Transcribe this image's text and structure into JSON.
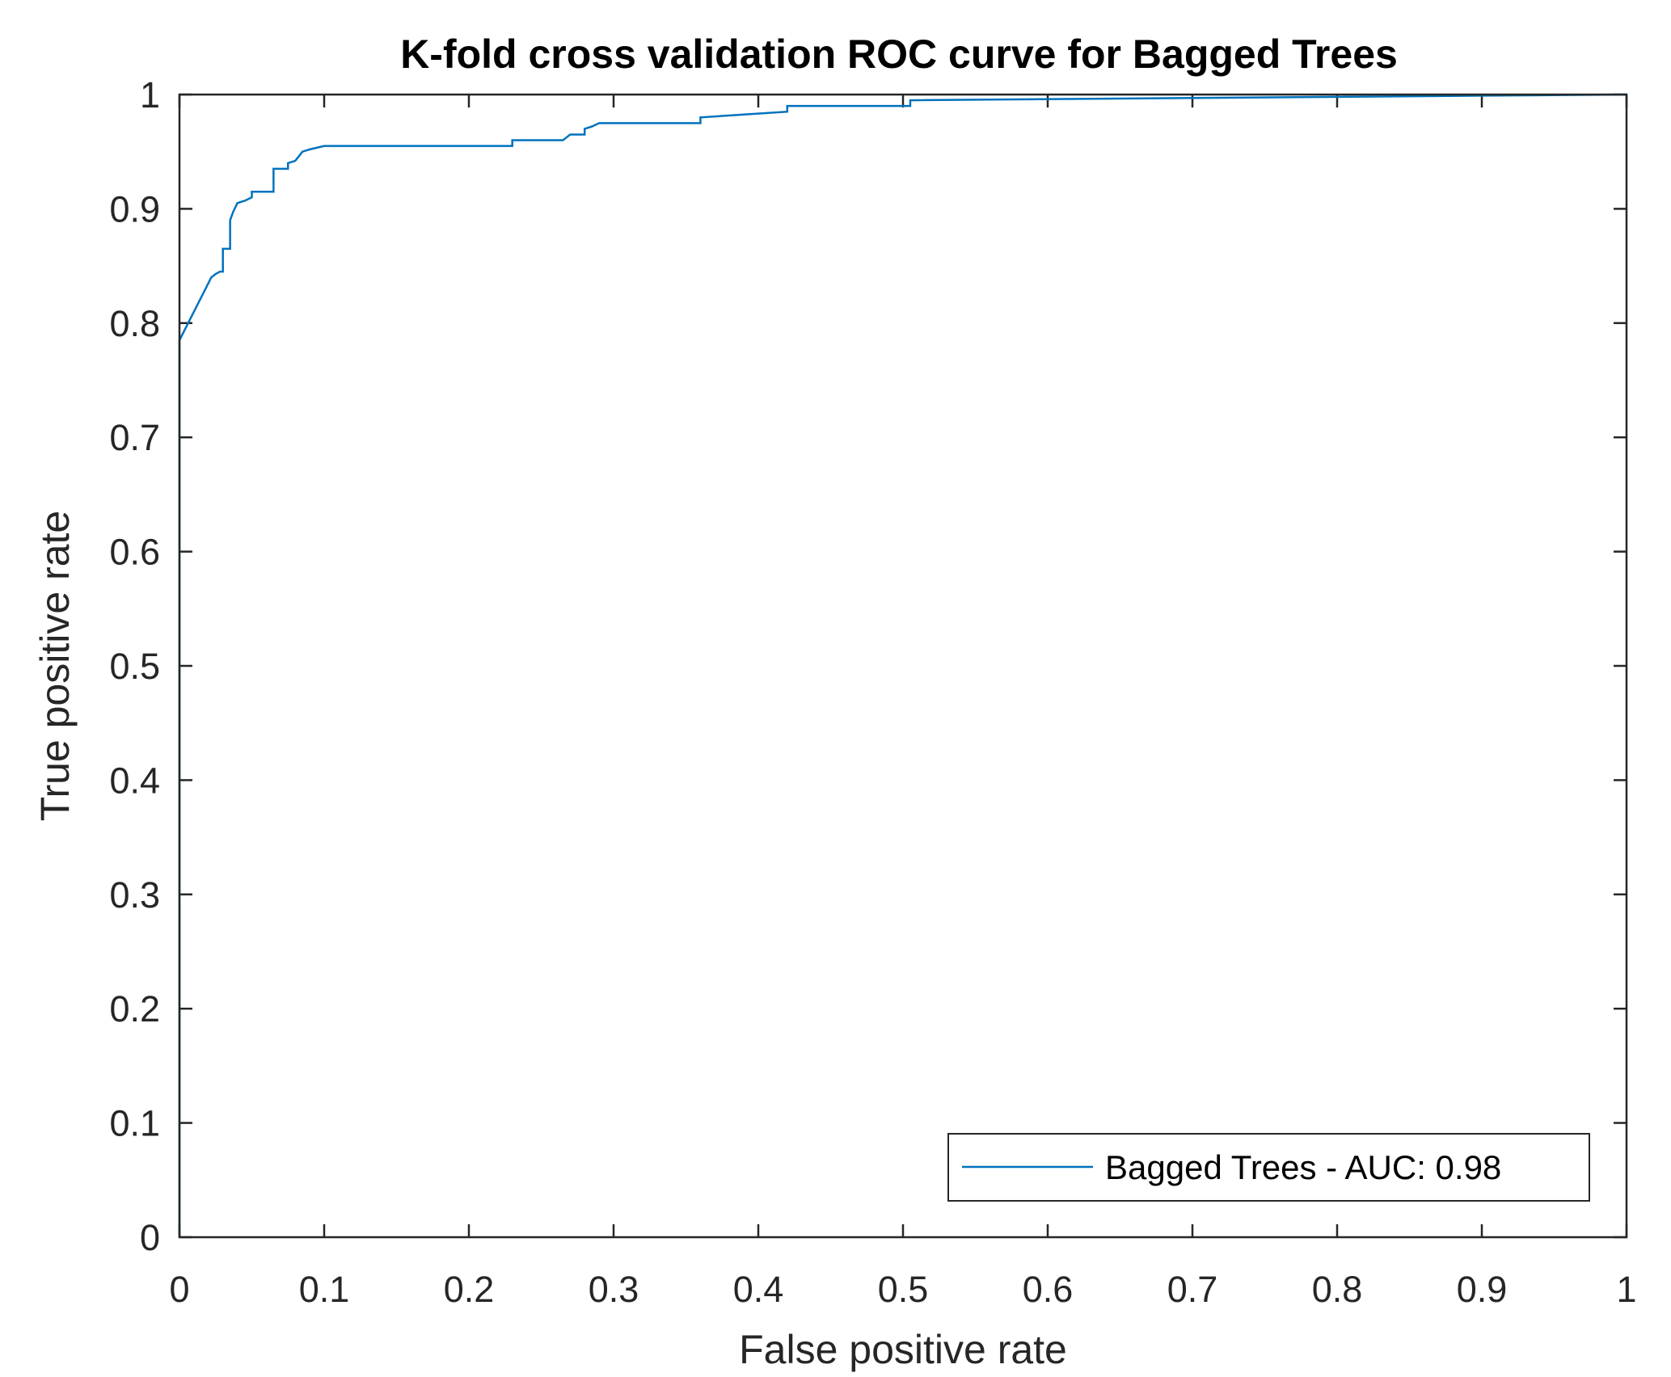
{
  "chart_data": {
    "type": "line",
    "title": "K-fold cross validation ROC curve for Bagged Trees",
    "xlabel": "False positive rate",
    "ylabel": "True positive rate",
    "xlim": [
      0,
      1
    ],
    "ylim": [
      0,
      1
    ],
    "xticks": [
      0,
      0.1,
      0.2,
      0.3,
      0.4,
      0.5,
      0.6,
      0.7,
      0.8,
      0.9,
      1
    ],
    "xtick_labels": [
      "0",
      "0.1",
      "0.2",
      "0.3",
      "0.4",
      "0.5",
      "0.6",
      "0.7",
      "0.8",
      "0.9",
      "1"
    ],
    "yticks": [
      0,
      0.1,
      0.2,
      0.3,
      0.4,
      0.5,
      0.6,
      0.7,
      0.8,
      0.9,
      1
    ],
    "ytick_labels": [
      "0",
      "0.1",
      "0.2",
      "0.3",
      "0.4",
      "0.5",
      "0.6",
      "0.7",
      "0.8",
      "0.9",
      "1"
    ],
    "grid": false,
    "legend_position": "bottom-right",
    "series": [
      {
        "name": "Bagged Trees - AUC: 0.98",
        "color": "#0072BD",
        "x": [
          0,
          0,
          0.002,
          0.02,
          0.022,
          0.025,
          0.028,
          0.03,
          0.03,
          0.035,
          0.035,
          0.037,
          0.04,
          0.045,
          0.05,
          0.05,
          0.065,
          0.065,
          0.075,
          0.075,
          0.08,
          0.085,
          0.09,
          0.1,
          0.23,
          0.23,
          0.265,
          0.27,
          0.28,
          0.28,
          0.285,
          0.29,
          0.36,
          0.36,
          0.42,
          0.42,
          0.505,
          0.505,
          0.7,
          0.8,
          0.9,
          1
        ],
        "y": [
          0,
          0.785,
          0.79,
          0.835,
          0.84,
          0.843,
          0.845,
          0.845,
          0.865,
          0.865,
          0.89,
          0.897,
          0.905,
          0.907,
          0.91,
          0.915,
          0.915,
          0.935,
          0.935,
          0.94,
          0.942,
          0.95,
          0.952,
          0.955,
          0.955,
          0.96,
          0.96,
          0.965,
          0.965,
          0.97,
          0.972,
          0.975,
          0.975,
          0.98,
          0.985,
          0.99,
          0.99,
          0.995,
          0.997,
          0.998,
          0.999,
          1
        ]
      }
    ]
  }
}
